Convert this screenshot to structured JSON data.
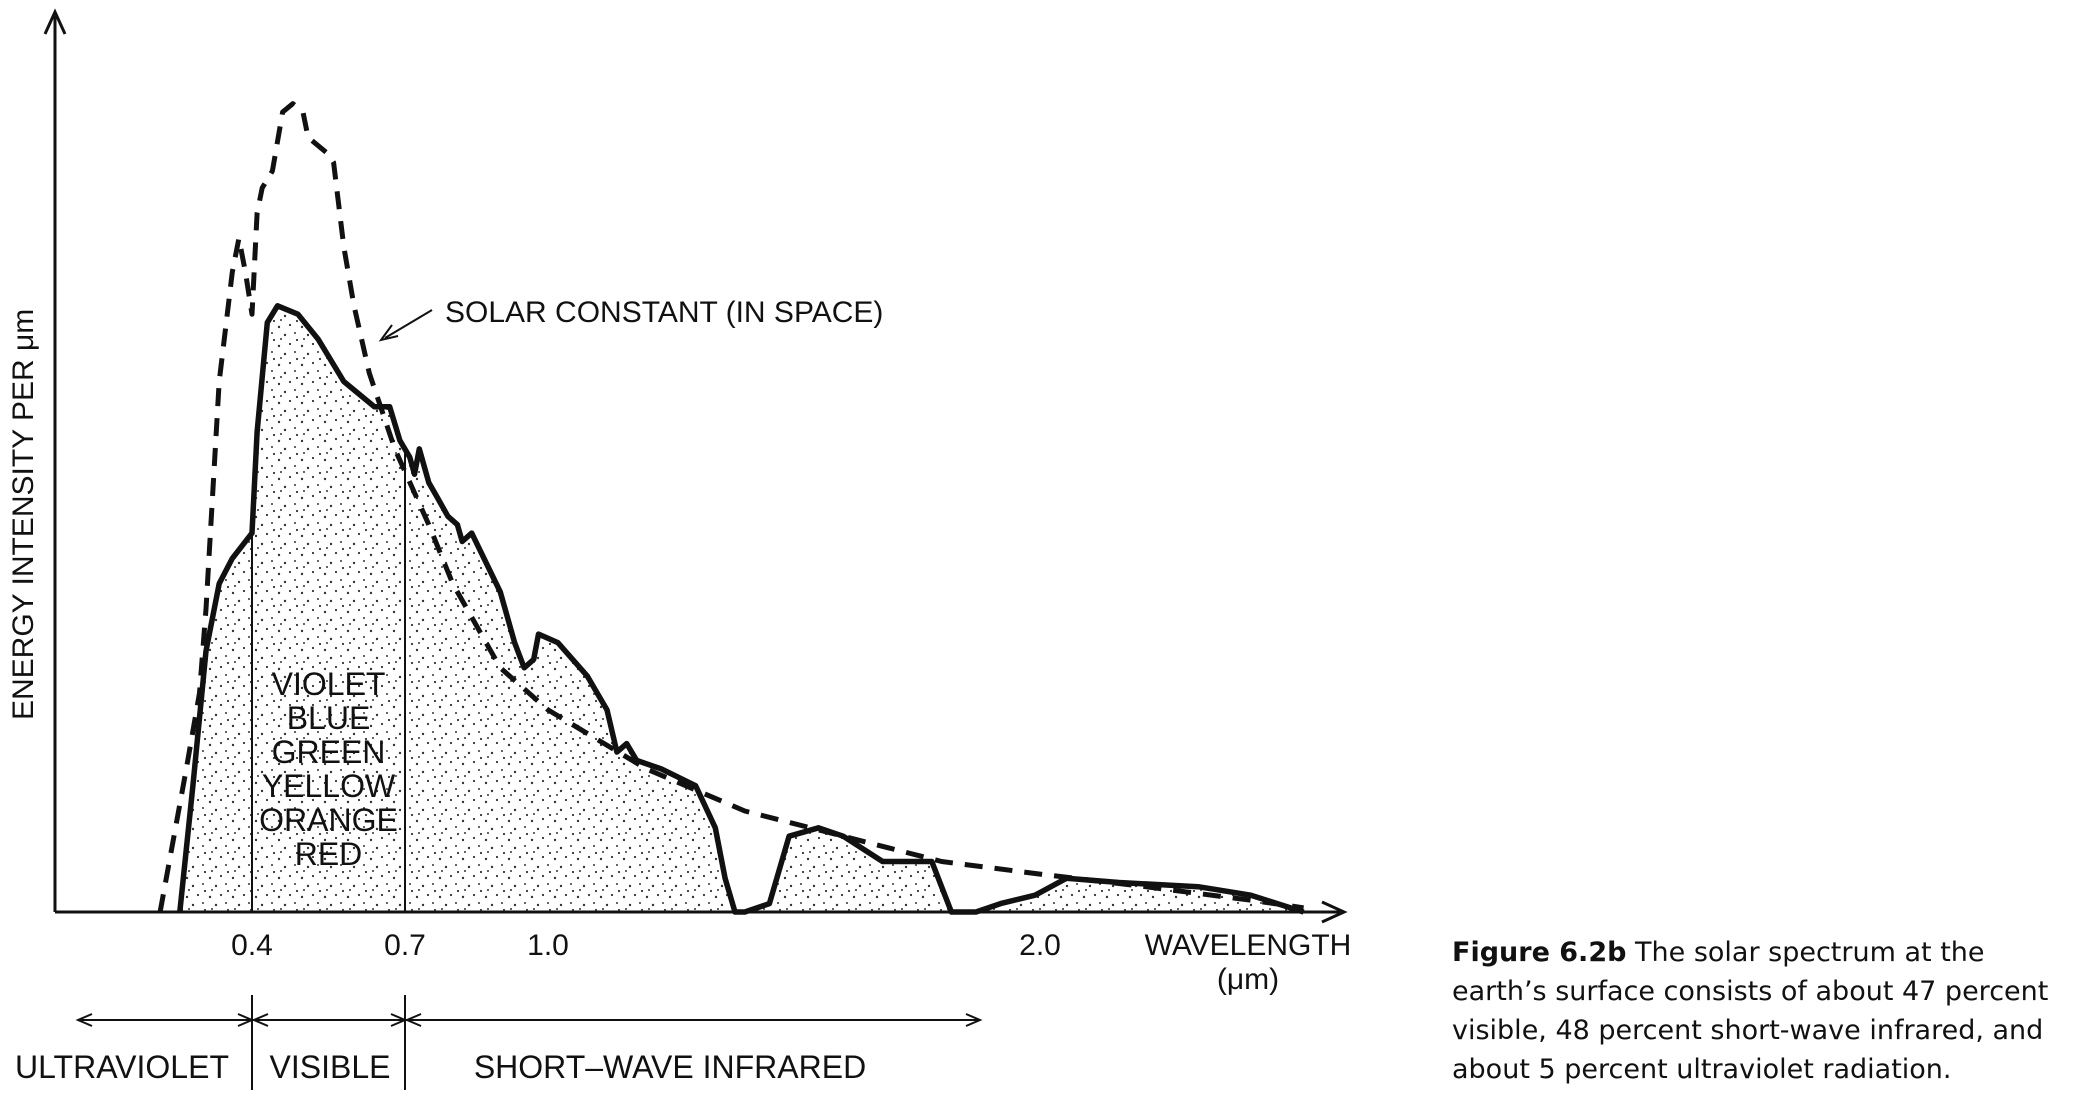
{
  "chart_data": {
    "type": "area",
    "ylabel": "ENERGY INTENSITY PER μm",
    "xlabel": "WAVELENGTH",
    "xunit": "(μm)",
    "xlim": [
      0.1,
      2.55
    ],
    "ylim": [
      0,
      1.0
    ],
    "x_ticks": [
      {
        "value": 0.4,
        "label": "0.4"
      },
      {
        "value": 0.7,
        "label": "0.7"
      },
      {
        "value": 1.0,
        "label": "1.0"
      },
      {
        "value": 2.0,
        "label": "2.0"
      }
    ],
    "annotation": "SOLAR CONSTANT (IN SPACE)",
    "visible_colors": [
      "VIOLET",
      "BLUE",
      "GREEN",
      "YELLOW",
      "ORANGE",
      "RED"
    ],
    "bands": [
      {
        "label": "ULTRAVIOLET",
        "from": 0.1,
        "to": 0.4
      },
      {
        "label": "VISIBLE",
        "from": 0.4,
        "to": 0.7
      },
      {
        "label": "SHORT–WAVE INFRARED",
        "from": 0.7,
        "to": 1.9
      }
    ],
    "series": [
      {
        "name": "SOLAR CONSTANT (IN SPACE)",
        "style": "dashed",
        "points": [
          [
            0.26,
            0.0
          ],
          [
            0.3,
            0.17
          ],
          [
            0.32,
            0.26
          ],
          [
            0.33,
            0.36
          ],
          [
            0.35,
            0.63
          ],
          [
            0.37,
            0.76
          ],
          [
            0.38,
            0.8
          ],
          [
            0.39,
            0.76
          ],
          [
            0.4,
            0.71
          ],
          [
            0.41,
            0.83
          ],
          [
            0.42,
            0.86
          ],
          [
            0.44,
            0.88
          ],
          [
            0.46,
            0.95
          ],
          [
            0.48,
            0.96
          ],
          [
            0.5,
            0.95
          ],
          [
            0.51,
            0.92
          ],
          [
            0.53,
            0.91
          ],
          [
            0.55,
            0.9
          ],
          [
            0.56,
            0.89
          ],
          [
            0.58,
            0.79
          ],
          [
            0.6,
            0.72
          ],
          [
            0.63,
            0.64
          ],
          [
            0.68,
            0.55
          ],
          [
            0.75,
            0.46
          ],
          [
            0.8,
            0.39
          ],
          [
            0.9,
            0.29
          ],
          [
            1.0,
            0.24
          ],
          [
            1.2,
            0.17
          ],
          [
            1.4,
            0.12
          ],
          [
            1.6,
            0.09
          ],
          [
            1.8,
            0.06
          ],
          [
            2.0,
            0.045
          ],
          [
            2.2,
            0.03
          ],
          [
            2.4,
            0.014
          ],
          [
            2.5,
            0.005
          ]
        ]
      },
      {
        "name": "Earth's surface",
        "style": "solid",
        "fill": "stippled",
        "points": [
          [
            0.29,
            0.0
          ],
          [
            0.31,
            0.15
          ],
          [
            0.33,
            0.31
          ],
          [
            0.35,
            0.39
          ],
          [
            0.37,
            0.42
          ],
          [
            0.4,
            0.45
          ],
          [
            0.41,
            0.57
          ],
          [
            0.43,
            0.7
          ],
          [
            0.45,
            0.72
          ],
          [
            0.49,
            0.71
          ],
          [
            0.53,
            0.68
          ],
          [
            0.58,
            0.63
          ],
          [
            0.64,
            0.6
          ],
          [
            0.67,
            0.6
          ],
          [
            0.69,
            0.56
          ],
          [
            0.71,
            0.54
          ],
          [
            0.72,
            0.52
          ],
          [
            0.73,
            0.55
          ],
          [
            0.75,
            0.51
          ],
          [
            0.77,
            0.49
          ],
          [
            0.79,
            0.47
          ],
          [
            0.81,
            0.46
          ],
          [
            0.82,
            0.44
          ],
          [
            0.84,
            0.45
          ],
          [
            0.9,
            0.38
          ],
          [
            0.93,
            0.32
          ],
          [
            0.95,
            0.29
          ],
          [
            0.97,
            0.3
          ],
          [
            0.98,
            0.33
          ],
          [
            1.02,
            0.32
          ],
          [
            1.08,
            0.28
          ],
          [
            1.1,
            0.26
          ],
          [
            1.12,
            0.24
          ],
          [
            1.14,
            0.19
          ],
          [
            1.16,
            0.2
          ],
          [
            1.18,
            0.18
          ],
          [
            1.23,
            0.17
          ],
          [
            1.3,
            0.15
          ],
          [
            1.34,
            0.1
          ],
          [
            1.36,
            0.04
          ],
          [
            1.38,
            0.0
          ],
          [
            1.4,
            0.0
          ],
          [
            1.45,
            0.01
          ],
          [
            1.49,
            0.09
          ],
          [
            1.55,
            0.1
          ],
          [
            1.6,
            0.09
          ],
          [
            1.68,
            0.06
          ],
          [
            1.78,
            0.06
          ],
          [
            1.82,
            0.0
          ],
          [
            1.87,
            0.0
          ],
          [
            1.92,
            0.01
          ],
          [
            1.99,
            0.02
          ],
          [
            2.05,
            0.04
          ],
          [
            2.15,
            0.035
          ],
          [
            2.3,
            0.03
          ],
          [
            2.4,
            0.02
          ],
          [
            2.45,
            0.01
          ],
          [
            2.5,
            0.0
          ]
        ]
      }
    ]
  },
  "caption": {
    "label": "Figure 6.2b",
    "text": "The solar spectrum at the earth’s surface consists of about 47 percent visible, 48 percent short-wave infrared, and about 5 percent ultraviolet radiation."
  }
}
